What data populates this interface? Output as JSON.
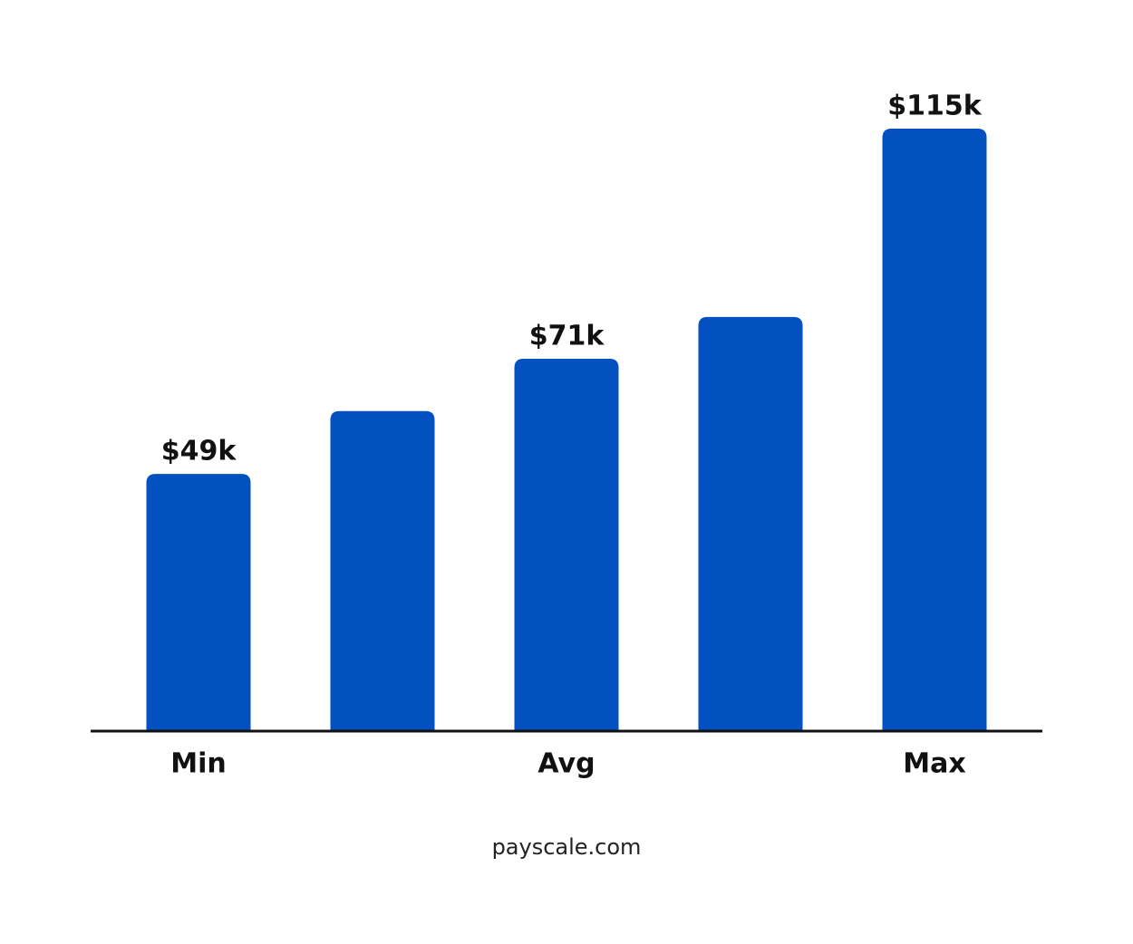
{
  "chart_data": {
    "type": "bar",
    "categories": [
      "Min",
      null,
      "Avg",
      null,
      "Max"
    ],
    "values": [
      49,
      61,
      71,
      79,
      115
    ],
    "value_labels": [
      "$49k",
      null,
      "$71k",
      null,
      "$115k"
    ],
    "color": "#0351c1",
    "footer": "payscale.com"
  }
}
